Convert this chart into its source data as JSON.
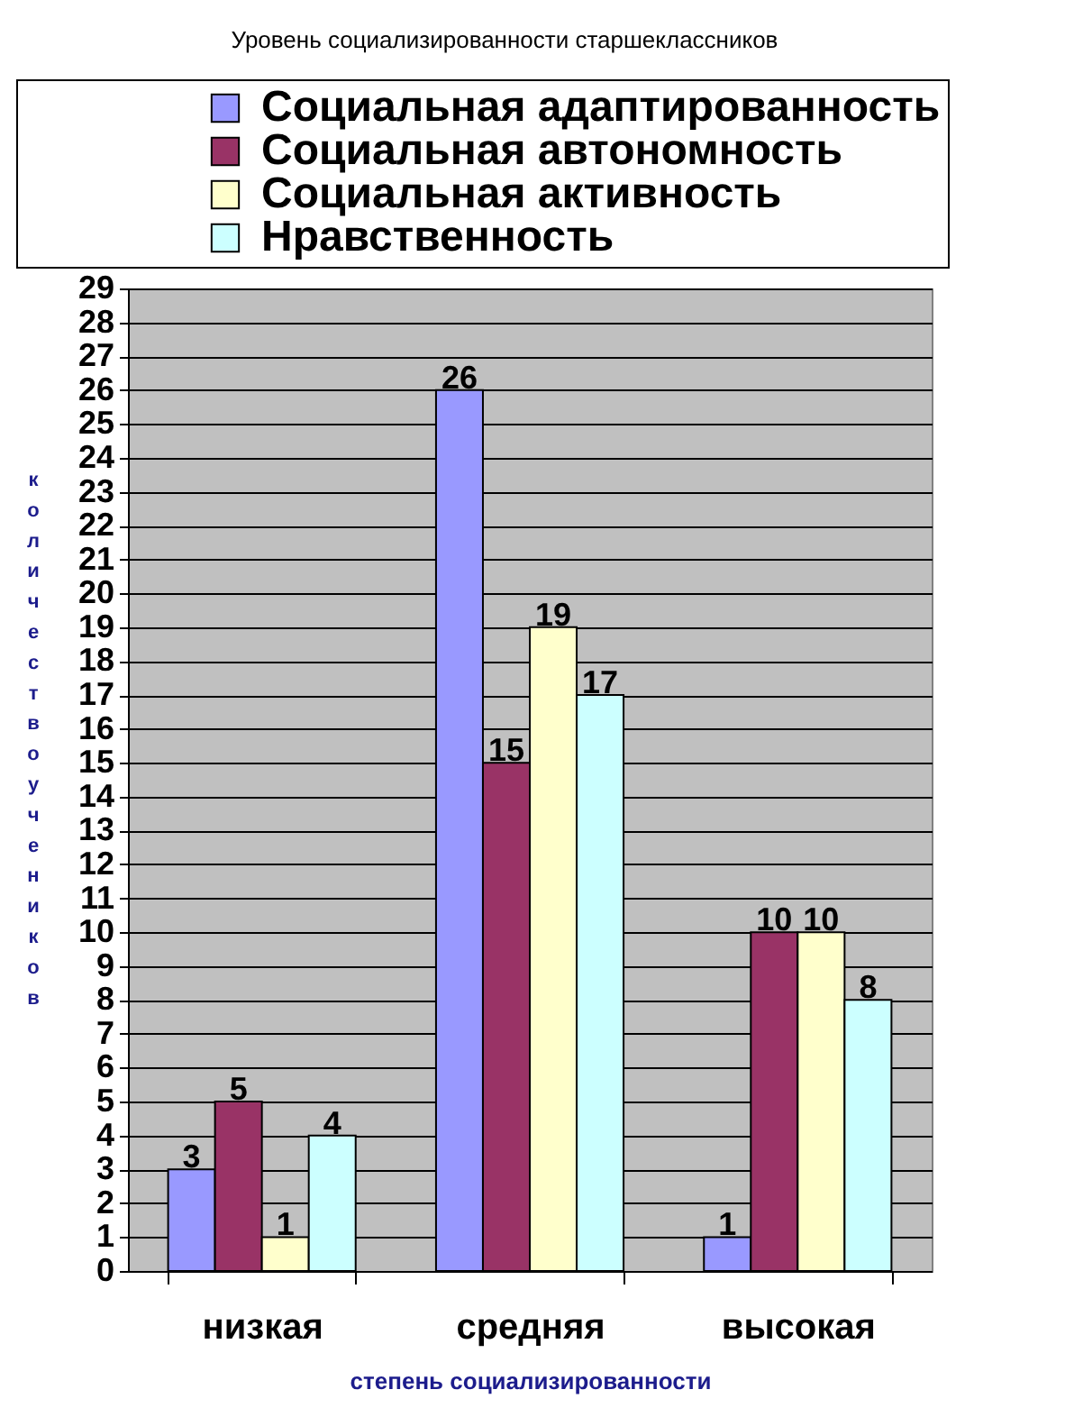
{
  "chart_data": {
    "type": "bar",
    "title": "Уровень социализированности старшеклассников",
    "xlabel": "степень социализированности",
    "ylabel": "количество учеников",
    "categories": [
      "низкая",
      "средняя",
      "высокая"
    ],
    "series": [
      {
        "name": "Социальная адаптированность",
        "color": "#9999ff",
        "values": [
          3,
          26,
          1
        ]
      },
      {
        "name": "Социальная автономность",
        "color": "#993366",
        "values": [
          5,
          15,
          10
        ]
      },
      {
        "name": "Социальная активность",
        "color": "#ffffcc",
        "values": [
          1,
          19,
          10
        ]
      },
      {
        "name": "Нравственность",
        "color": "#ccffff",
        "values": [
          4,
          17,
          8
        ]
      }
    ],
    "ylim": [
      0,
      29
    ],
    "yticks": [
      0,
      1,
      2,
      3,
      4,
      5,
      6,
      7,
      8,
      9,
      10,
      11,
      12,
      13,
      14,
      15,
      16,
      17,
      18,
      19,
      20,
      21,
      22,
      23,
      24,
      25,
      26,
      27,
      28,
      29
    ],
    "grid": "y",
    "legend": "top",
    "data_labels": true
  }
}
